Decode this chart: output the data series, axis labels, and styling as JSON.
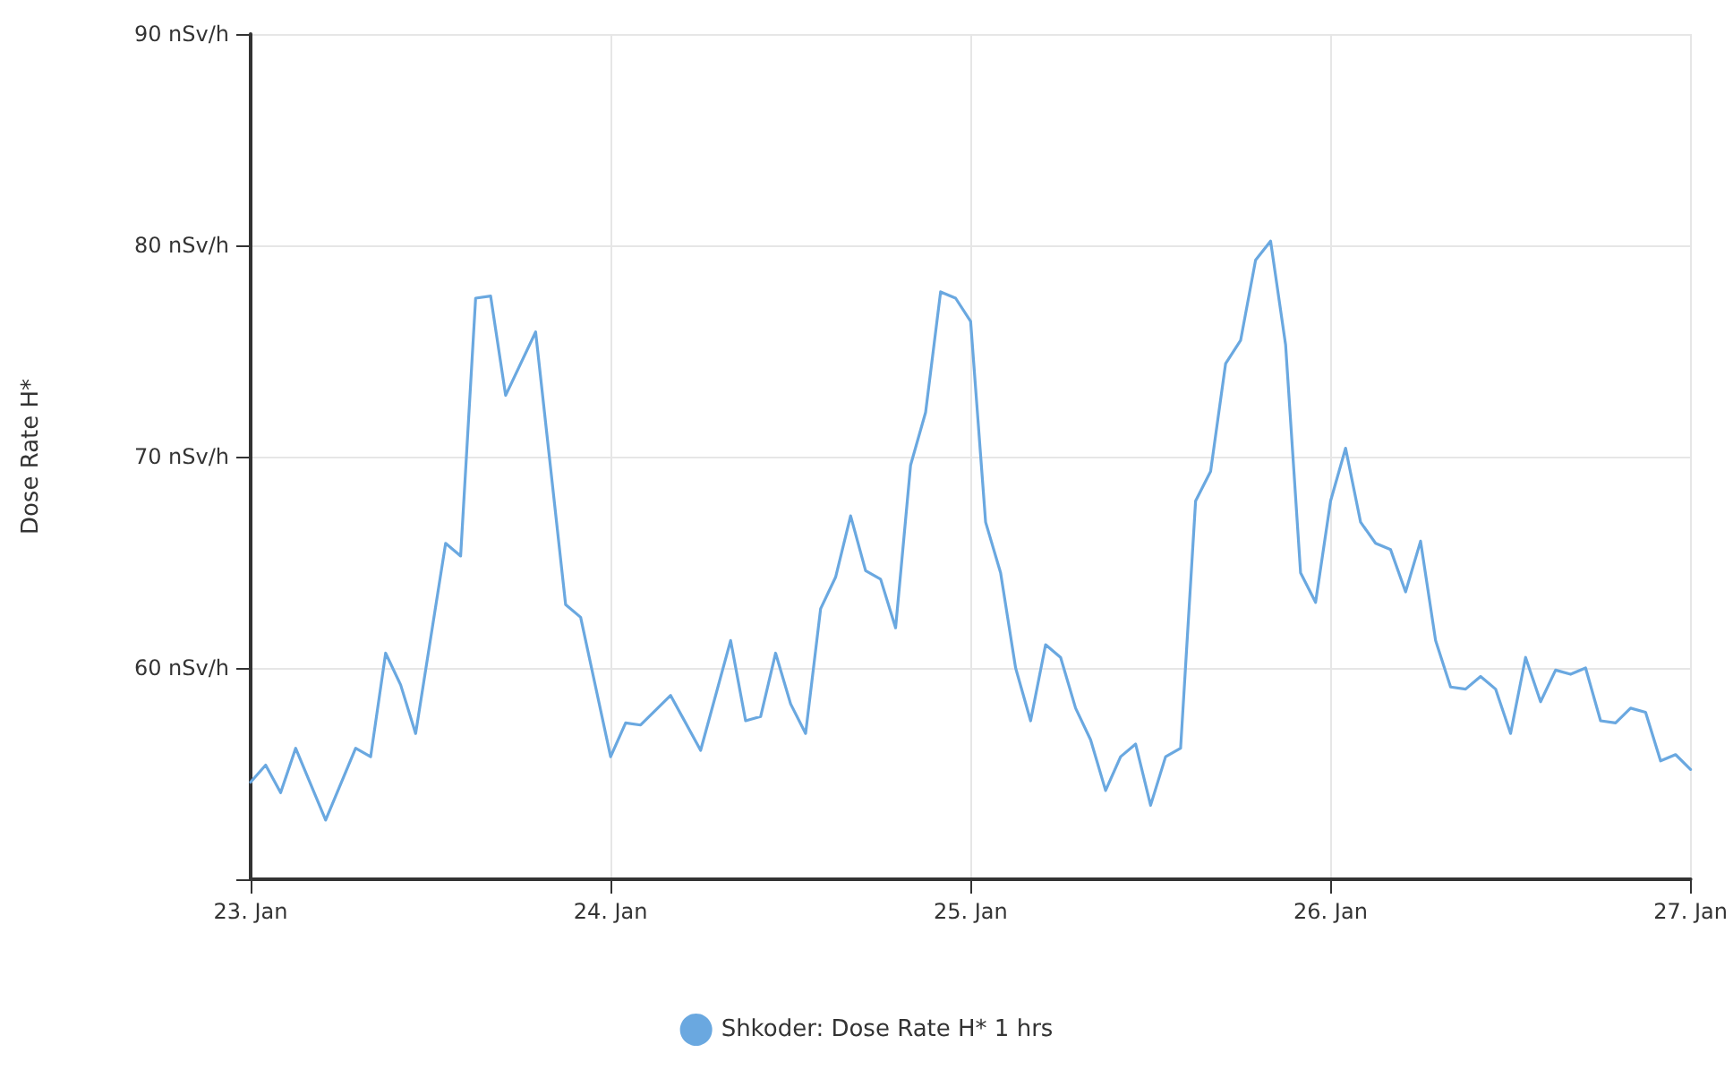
{
  "chart_data": {
    "type": "line",
    "ylabel": "Dose Rate H*",
    "x": [
      "--01-23T00:00",
      "--01-23T01:00",
      "--01-23T02:00",
      "--01-23T03:00",
      "--01-23T05:00",
      "--01-23T07:00",
      "--01-23T08:00",
      "--01-23T09:00",
      "--01-23T10:00",
      "--01-23T11:00",
      "--01-23T13:00",
      "--01-23T14:00",
      "--01-23T15:00",
      "--01-23T16:00",
      "--01-23T17:00",
      "--01-23T19:00",
      "--01-23T21:00",
      "--01-23T22:00",
      "--01-24T00:00",
      "--01-24T01:00",
      "--01-24T02:00",
      "--01-24T04:00",
      "--01-24T06:00",
      "--01-24T08:00",
      "--01-24T09:00",
      "--01-24T10:00",
      "--01-24T11:00",
      "--01-24T12:00",
      "--01-24T13:00",
      "--01-24T14:00",
      "--01-24T15:00",
      "--01-24T16:00",
      "--01-24T17:00",
      "--01-24T18:00",
      "--01-24T19:00",
      "--01-24T20:00",
      "--01-24T21:00",
      "--01-24T22:00",
      "--01-24T23:00",
      "--01-25T00:00",
      "--01-25T01:00",
      "--01-25T02:00",
      "--01-25T03:00",
      "--01-25T04:00",
      "--01-25T05:00",
      "--01-25T06:00",
      "--01-25T07:00",
      "--01-25T08:00",
      "--01-25T09:00",
      "--01-25T10:00",
      "--01-25T11:00",
      "--01-25T12:00",
      "--01-25T13:00",
      "--01-25T14:00",
      "--01-25T15:00",
      "--01-25T16:00",
      "--01-25T17:00",
      "--01-25T18:00",
      "--01-25T19:00",
      "--01-25T20:00",
      "--01-25T21:00",
      "--01-25T22:00",
      "--01-25T23:00",
      "--01-26T00:00",
      "--01-26T01:00",
      "--01-26T02:00",
      "--01-26T03:00",
      "--01-26T04:00",
      "--01-26T05:00",
      "--01-26T06:00",
      "--01-26T07:00",
      "--01-26T08:00",
      "--01-26T09:00",
      "--01-26T10:00",
      "--01-26T11:00",
      "--01-26T12:00",
      "--01-26T13:00",
      "--01-26T14:00",
      "--01-26T15:00",
      "--01-26T16:00",
      "--01-26T17:00",
      "--01-26T18:00",
      "--01-26T19:00",
      "--01-26T20:00",
      "--01-26T21:00",
      "--01-26T22:00",
      "--01-26T23:00",
      "--01-27T00:00"
    ],
    "series": [
      {
        "name": "Shkoder: Dose Rate H* 1 hrs",
        "color": "#6aa8e0",
        "values": [
          54.6,
          55.4,
          54.1,
          56.2,
          52.8,
          56.2,
          55.8,
          60.7,
          59.2,
          56.9,
          65.9,
          65.3,
          77.5,
          77.6,
          72.9,
          75.9,
          63.0,
          62.4,
          55.8,
          57.4,
          57.3,
          58.7,
          56.1,
          61.3,
          57.5,
          57.7,
          60.7,
          58.3,
          56.9,
          62.8,
          64.3,
          67.2,
          64.6,
          64.2,
          61.9,
          69.6,
          72.1,
          77.8,
          77.5,
          76.4,
          66.9,
          64.5,
          60.0,
          57.5,
          61.1,
          60.5,
          58.1,
          56.6,
          54.2,
          55.8,
          56.4,
          53.5,
          55.8,
          56.2,
          67.9,
          69.3,
          74.4,
          75.5,
          79.3,
          80.2,
          75.3,
          64.5,
          63.1,
          67.9,
          70.4,
          66.9,
          65.9,
          65.6,
          63.6,
          66.0,
          61.3,
          59.1,
          59.0,
          59.6,
          59.0,
          56.9,
          60.5,
          58.4,
          59.9,
          59.7,
          60.0,
          57.5,
          57.4,
          58.1,
          57.9,
          55.6,
          55.9,
          55.2
        ]
      }
    ],
    "xlim": [
      "--01-23",
      "--01-27"
    ],
    "xticks": [
      {
        "value": "--01-23",
        "label": "23. Jan"
      },
      {
        "value": "--01-24",
        "label": "24. Jan"
      },
      {
        "value": "--01-25",
        "label": "25. Jan"
      },
      {
        "value": "--01-26",
        "label": "26. Jan"
      },
      {
        "value": "--01-27",
        "label": "27. Jan"
      }
    ],
    "ylim": [
      50,
      90
    ],
    "yticks": [
      {
        "value": 50,
        "label": null
      },
      {
        "value": 60,
        "label": "60 nSv/h"
      },
      {
        "value": 70,
        "label": "70 nSv/h"
      },
      {
        "value": 80,
        "label": "80 nSv/h"
      },
      {
        "value": 90,
        "label": "90 nSv/h"
      }
    ],
    "grid": true,
    "legend": "bottom",
    "marker": "none",
    "line_style": "solid"
  }
}
